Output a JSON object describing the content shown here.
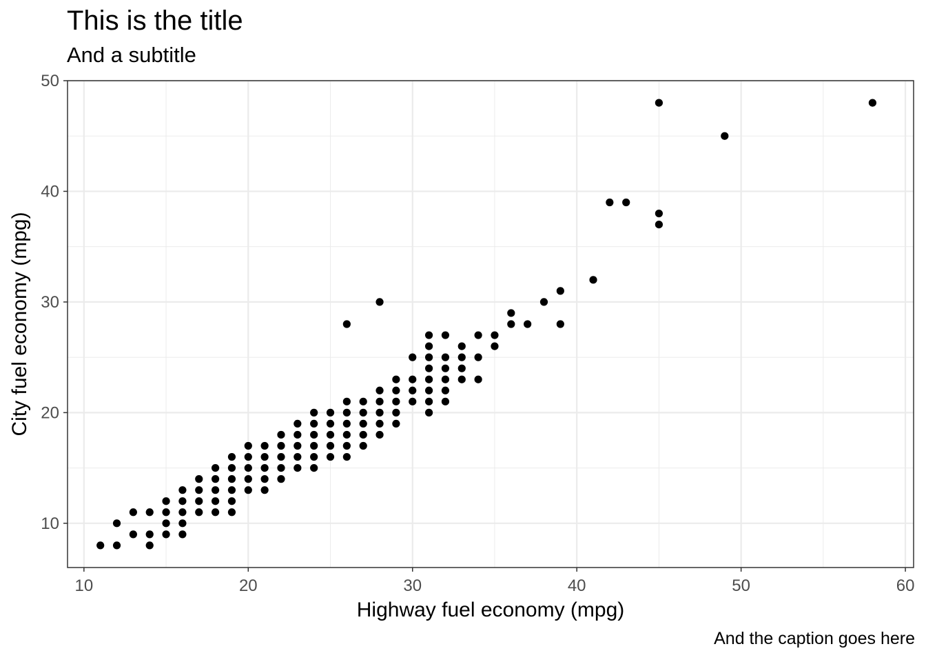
{
  "chart_data": {
    "type": "scatter",
    "title": "This is the title",
    "subtitle": "And a subtitle",
    "caption": "And the caption goes here",
    "xlabel": "Highway fuel economy (mpg)",
    "ylabel": "City fuel economy (mpg)",
    "xlim": [
      9,
      60.5
    ],
    "ylim": [
      6,
      50
    ],
    "xticks": [
      10,
      20,
      30,
      40,
      50,
      60
    ],
    "yticks": [
      10,
      20,
      30,
      40,
      50
    ],
    "grid": true,
    "points": [
      [
        11,
        8
      ],
      [
        12,
        8
      ],
      [
        12,
        10
      ],
      [
        13,
        9
      ],
      [
        13,
        11
      ],
      [
        14,
        8
      ],
      [
        14,
        9
      ],
      [
        14,
        11
      ],
      [
        15,
        9
      ],
      [
        15,
        10
      ],
      [
        15,
        11
      ],
      [
        15,
        12
      ],
      [
        16,
        9
      ],
      [
        16,
        10
      ],
      [
        16,
        11
      ],
      [
        16,
        12
      ],
      [
        16,
        13
      ],
      [
        17,
        11
      ],
      [
        17,
        12
      ],
      [
        17,
        13
      ],
      [
        17,
        14
      ],
      [
        18,
        11
      ],
      [
        18,
        12
      ],
      [
        18,
        13
      ],
      [
        18,
        14
      ],
      [
        18,
        15
      ],
      [
        19,
        11
      ],
      [
        19,
        12
      ],
      [
        19,
        13
      ],
      [
        19,
        14
      ],
      [
        19,
        15
      ],
      [
        19,
        16
      ],
      [
        20,
        13
      ],
      [
        20,
        14
      ],
      [
        20,
        15
      ],
      [
        20,
        16
      ],
      [
        20,
        17
      ],
      [
        21,
        13
      ],
      [
        21,
        14
      ],
      [
        21,
        15
      ],
      [
        21,
        16
      ],
      [
        21,
        17
      ],
      [
        22,
        14
      ],
      [
        22,
        15
      ],
      [
        22,
        16
      ],
      [
        22,
        17
      ],
      [
        22,
        18
      ],
      [
        23,
        15
      ],
      [
        23,
        16
      ],
      [
        23,
        17
      ],
      [
        23,
        18
      ],
      [
        23,
        19
      ],
      [
        24,
        15
      ],
      [
        24,
        16
      ],
      [
        24,
        17
      ],
      [
        24,
        18
      ],
      [
        24,
        19
      ],
      [
        24,
        20
      ],
      [
        25,
        16
      ],
      [
        25,
        17
      ],
      [
        25,
        18
      ],
      [
        25,
        19
      ],
      [
        25,
        20
      ],
      [
        26,
        16
      ],
      [
        26,
        17
      ],
      [
        26,
        18
      ],
      [
        26,
        19
      ],
      [
        26,
        20
      ],
      [
        26,
        21
      ],
      [
        26,
        28
      ],
      [
        27,
        17
      ],
      [
        27,
        18
      ],
      [
        27,
        19
      ],
      [
        27,
        20
      ],
      [
        27,
        21
      ],
      [
        28,
        18
      ],
      [
        28,
        19
      ],
      [
        28,
        20
      ],
      [
        28,
        21
      ],
      [
        28,
        22
      ],
      [
        28,
        30
      ],
      [
        29,
        19
      ],
      [
        29,
        20
      ],
      [
        29,
        21
      ],
      [
        29,
        22
      ],
      [
        29,
        23
      ],
      [
        30,
        21
      ],
      [
        30,
        22
      ],
      [
        30,
        23
      ],
      [
        30,
        25
      ],
      [
        31,
        20
      ],
      [
        31,
        21
      ],
      [
        31,
        22
      ],
      [
        31,
        23
      ],
      [
        31,
        24
      ],
      [
        31,
        25
      ],
      [
        31,
        26
      ],
      [
        31,
        27
      ],
      [
        32,
        21
      ],
      [
        32,
        22
      ],
      [
        32,
        23
      ],
      [
        32,
        24
      ],
      [
        32,
        25
      ],
      [
        32,
        27
      ],
      [
        33,
        23
      ],
      [
        33,
        24
      ],
      [
        33,
        25
      ],
      [
        33,
        26
      ],
      [
        34,
        23
      ],
      [
        34,
        25
      ],
      [
        34,
        27
      ],
      [
        35,
        26
      ],
      [
        35,
        27
      ],
      [
        36,
        28
      ],
      [
        36,
        29
      ],
      [
        37,
        28
      ],
      [
        38,
        30
      ],
      [
        39,
        28
      ],
      [
        39,
        31
      ],
      [
        41,
        32
      ],
      [
        42,
        39
      ],
      [
        43,
        39
      ],
      [
        45,
        37
      ],
      [
        45,
        38
      ],
      [
        45,
        48
      ],
      [
        49,
        45
      ],
      [
        58,
        48
      ]
    ]
  }
}
